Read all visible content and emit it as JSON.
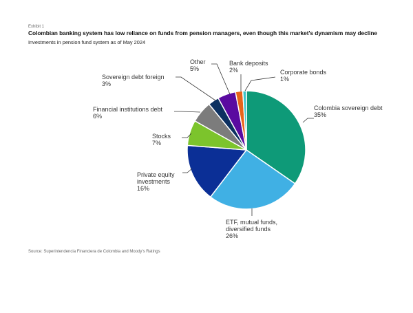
{
  "header": {
    "exhibit": "Exhibit 1",
    "title": "Colombian banking system has low reliance on funds from pension managers, even though this market's dynamism may decline",
    "subtitle": "Investments in pension fund system as of May 2024"
  },
  "footer": {
    "source": "Source: Superintendencia Financiera de Colombia and Moody's Ratings"
  },
  "chart_data": {
    "type": "pie",
    "title": "Investments in pension fund system as of May 2024",
    "start_angle": "12 o'clock",
    "direction": "clockwise",
    "categories": [
      "Colombia sovereign debt",
      "ETF, mutual funds, diversified funds",
      "Private equity investments",
      "Stocks",
      "Financial institutions debt",
      "Sovereign debt foreign",
      "Other",
      "Bank deposits",
      "Corporate bonds"
    ],
    "values": [
      35,
      26,
      16,
      7,
      6,
      3,
      5,
      2,
      1
    ],
    "unit": "%",
    "colors": [
      "#0e9a78",
      "#40b0e4",
      "#0b2f96",
      "#7cc42c",
      "#7c7c7c",
      "#0c3060",
      "#5a0aa0",
      "#e8641a",
      "#3cc4c8"
    ],
    "labels": [
      {
        "line1": "Colombia sovereign debt",
        "value": "35%"
      },
      {
        "line1": "ETF, mutual funds,",
        "line2": "diversified funds",
        "value": "26%"
      },
      {
        "line1": "Private equity",
        "line2": "investments",
        "value": "16%"
      },
      {
        "line1": "Stocks",
        "value": "7%"
      },
      {
        "line1": "Financial institutions debt",
        "value": "6%"
      },
      {
        "line1": "Sovereign debt foreign",
        "value": "3%"
      },
      {
        "line1": "Other",
        "value": "5%"
      },
      {
        "line1": "Bank deposits",
        "value": "2%"
      },
      {
        "line1": "Corporate bonds",
        "value": "1%"
      }
    ],
    "legend": "none (direct labels with leader lines)"
  }
}
